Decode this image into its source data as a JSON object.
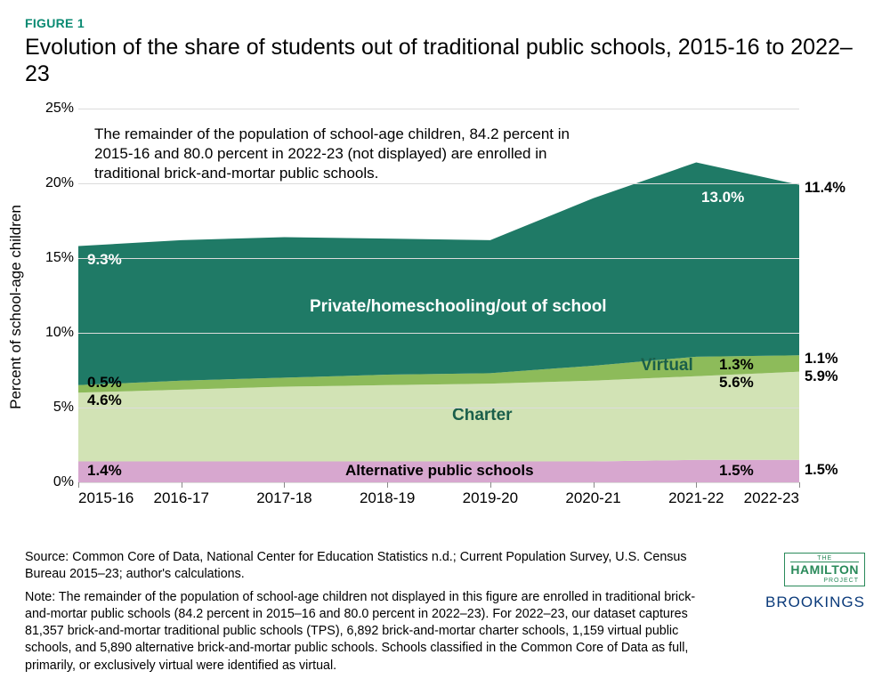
{
  "figure_label": "FIGURE 1",
  "title": "Evolution of the share of students out of traditional public schools, 2015-16 to 2022–23",
  "y_axis_label": "Percent of school-age children",
  "chart": {
    "type": "stacked-area",
    "background_color": "#ffffff",
    "grid_color": "#dcdcdc",
    "ylim": [
      0,
      25
    ],
    "yticks": [
      0,
      5,
      10,
      15,
      20,
      25
    ],
    "ytick_labels": [
      "0%",
      "5%",
      "10%",
      "15%",
      "20%",
      "25%"
    ],
    "categories": [
      "2015-16",
      "2016-17",
      "2017-18",
      "2018-19",
      "2019-20",
      "2020-21",
      "2021-22",
      "2022-23"
    ],
    "series": [
      {
        "name": "Alternative public schools",
        "color": "#d7a7cf",
        "values": [
          1.4,
          1.4,
          1.4,
          1.4,
          1.4,
          1.4,
          1.5,
          1.5
        ]
      },
      {
        "name": "Charter",
        "color": "#d2e3b5",
        "values": [
          4.6,
          4.8,
          5.0,
          5.1,
          5.2,
          5.4,
          5.6,
          5.9
        ]
      },
      {
        "name": "Virtual",
        "color": "#8dbb5a",
        "values": [
          0.5,
          0.6,
          0.6,
          0.7,
          0.7,
          1.0,
          1.3,
          1.1
        ]
      },
      {
        "name": "Private/homeschooling/out of school",
        "color": "#1f7a66",
        "values": [
          9.3,
          9.4,
          9.4,
          9.1,
          8.9,
          11.2,
          13.0,
          11.4
        ]
      }
    ],
    "series_labels": {
      "alternative": "Alternative public schools",
      "charter": "Charter",
      "virtual": "Virtual",
      "private": "Private/homeschooling/out of school"
    },
    "point_labels": {
      "alt_2015": "1.4%",
      "alt_2021": "1.5%",
      "alt_2022": "1.5%",
      "charter_2015": "4.6%",
      "charter_2021": "5.6%",
      "charter_2022": "5.9%",
      "virtual_2015": "0.5%",
      "virtual_2021": "1.3%",
      "virtual_2022": "1.1%",
      "private_2015": "9.3%",
      "private_2021": "13.0%",
      "private_2022": "11.4%"
    },
    "inset_note": "The remainder of the population of school-age children, 84.2 percent in 2015-16 and 80.0 percent in 2022-23 (not displayed) are enrolled in traditional brick-and-mortar public schools."
  },
  "footnotes": {
    "source": "Source: Common Core of Data, National Center for Education Statistics n.d.; Current Population Survey, U.S. Census Bureau 2015–23; author's calculations.",
    "note": "Note: The remainder of the population of school-age children not displayed in this figure are enrolled in traditional brick- and-mortar public schools (84.2 percent in 2015–16 and 80.0 percent in 2022–23). For 2022–23, our dataset captures 81,357 brick-and-mortar traditional public schools (TPS), 6,892 brick-and-mortar charter schools, 1,159 virtual public schools, and 5,890 alternative brick-and-mortar public schools. Schools classified in the Common Core of Data as full, primarily, or exclusively virtual were identified as virtual."
  },
  "logos": {
    "hamilton_the": "THE",
    "hamilton_name": "HAMILTON",
    "hamilton_proj": "PROJECT",
    "brookings": "BROOKINGS"
  }
}
